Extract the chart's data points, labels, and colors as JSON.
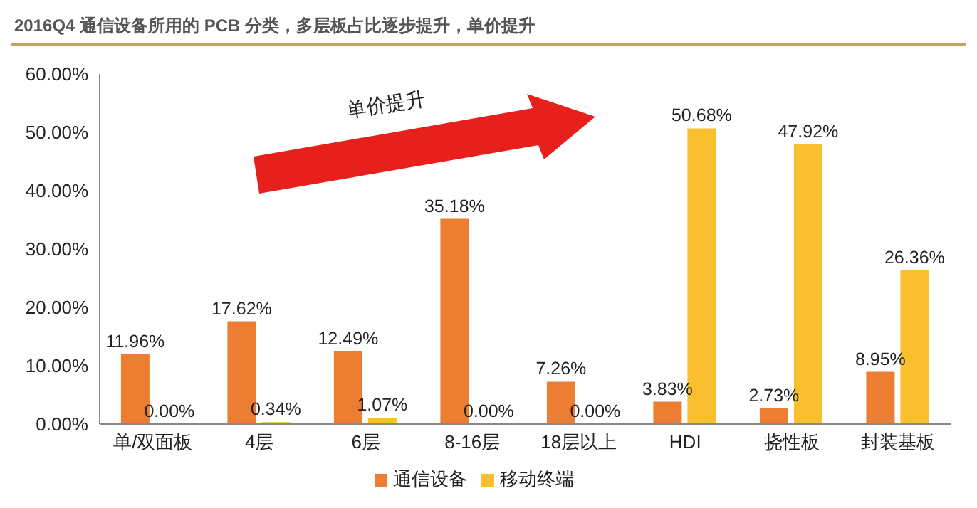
{
  "chart_data": {
    "type": "bar",
    "title": "2016Q4 通信设备所用的 PCB 分类，多层板占比逐步提升，单价提升",
    "categories": [
      "单/双面板",
      "4层",
      "6层",
      "8-16层",
      "18层以上",
      "HDI",
      "挠性板",
      "封装基板"
    ],
    "series": [
      {
        "name": "通信设备",
        "color": "#ed7d31",
        "values": [
          11.96,
          17.62,
          12.49,
          35.18,
          7.26,
          3.83,
          2.73,
          8.95
        ],
        "value_labels": [
          "11.96%",
          "17.62%",
          "12.49%",
          "35.18%",
          "7.26%",
          "3.83%",
          "2.73%",
          "8.95%"
        ]
      },
      {
        "name": "移动终端",
        "color": "#f9bf2f",
        "values": [
          0,
          0.34,
          1.07,
          0,
          0,
          50.68,
          47.92,
          26.36
        ],
        "value_labels": [
          "0.00%",
          "0.34%",
          "1.07%",
          "0.00%",
          "0.00%",
          "50.68%",
          "47.92%",
          "26.36%"
        ]
      }
    ],
    "ylim": [
      0,
      60
    ],
    "yticks": [
      {
        "value": 0,
        "label": "0.00%"
      },
      {
        "value": 10,
        "label": "10.00%"
      },
      {
        "value": 20,
        "label": "20.00%"
      },
      {
        "value": 30,
        "label": "30.00%"
      },
      {
        "value": 40,
        "label": "40.00%"
      },
      {
        "value": 50,
        "label": "50.00%"
      },
      {
        "value": 60,
        "label": "60.00%"
      }
    ],
    "grid": false,
    "legend": "bottom",
    "annotations": [
      "单价提升"
    ]
  }
}
